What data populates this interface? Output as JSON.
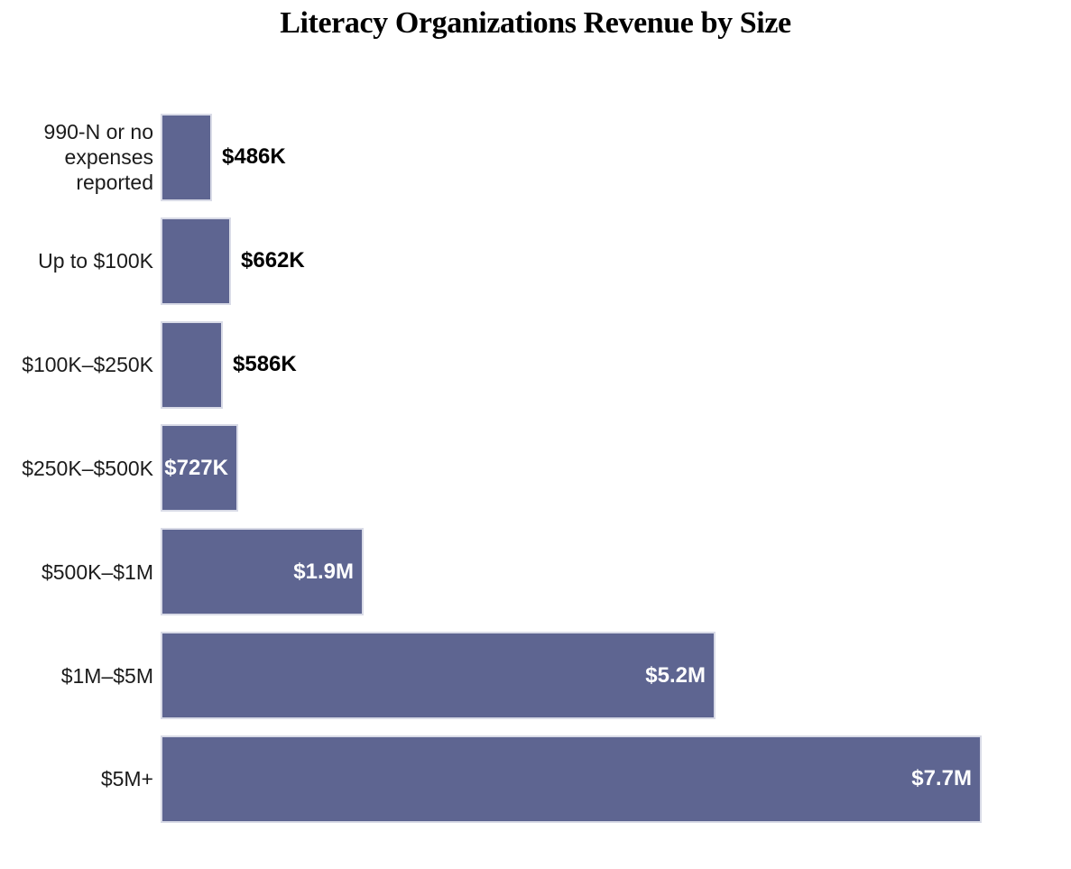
{
  "chart_data": {
    "type": "bar",
    "orientation": "horizontal",
    "title": "Literacy Organizations Revenue by Size",
    "xlabel": "",
    "ylabel": "",
    "axes_shown": false,
    "grid": false,
    "legend": "none",
    "value_unit": "USD",
    "implied_xlim_k": [
      0,
      7700
    ],
    "categories": [
      "990-N or no expenses reported",
      "Up to $100K",
      "$100K–$250K",
      "$250K–$500K",
      "$500K–$1M",
      "$1M–$5M",
      "$5M+"
    ],
    "points": [
      {
        "category": "990-N or no expenses reported",
        "value_k": 486,
        "label": "$486K",
        "label_position": "outside"
      },
      {
        "category": "Up to $100K",
        "value_k": 662,
        "label": "$662K",
        "label_position": "outside"
      },
      {
        "category": "$100K–$250K",
        "value_k": 586,
        "label": "$586K",
        "label_position": "outside"
      },
      {
        "category": "$250K–$500K",
        "value_k": 727,
        "label": "$727K",
        "label_position": "inside"
      },
      {
        "category": "$500K–$1M",
        "value_k": 1900,
        "label": "$1.9M",
        "label_position": "inside"
      },
      {
        "category": "$1M–$5M",
        "value_k": 5200,
        "label": "$5.2M",
        "label_position": "inside"
      },
      {
        "category": "$5M+",
        "value_k": 7700,
        "label": "$7.7M",
        "label_position": "inside"
      }
    ],
    "colors": {
      "bar_fill": "#5e6591",
      "bar_border": "#d9dbe7",
      "value_label_inside": "#ffffff",
      "value_label_outside": "#000000",
      "category_text": "#1b1b1b",
      "title_text": "#000000",
      "background": "#ffffff"
    }
  }
}
